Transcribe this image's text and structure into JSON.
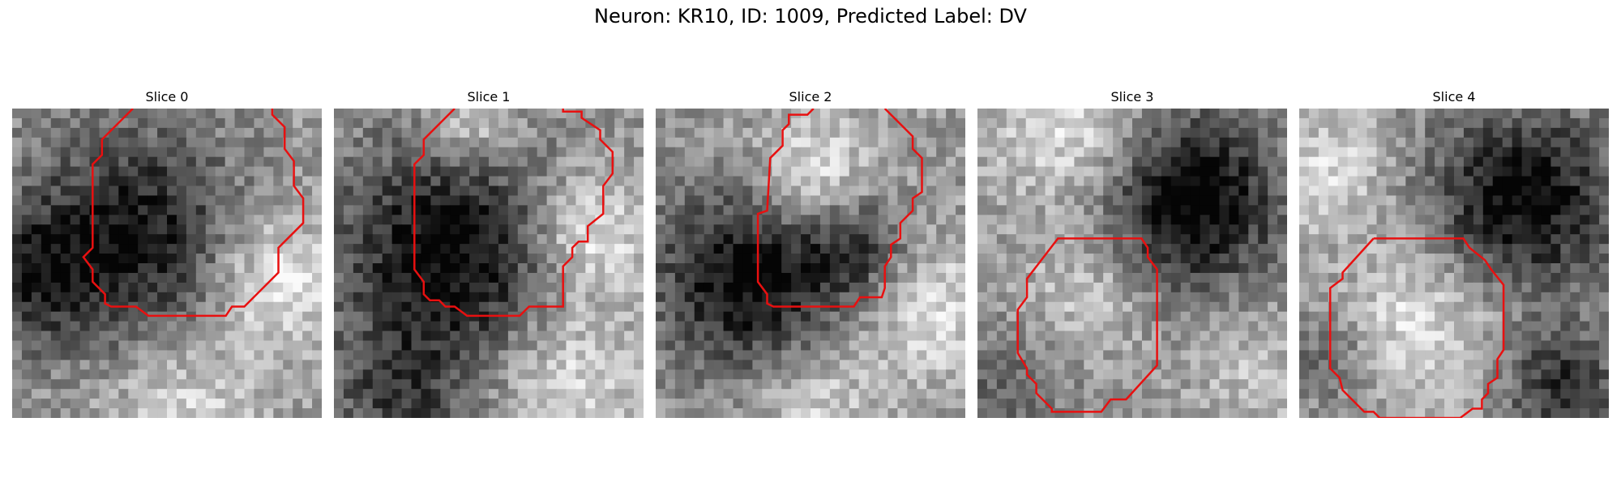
{
  "figure": {
    "title": "Neuron: KR10, ID: 1009, Predicted Label: DV"
  },
  "colors": {
    "contour": "#e81010",
    "background": "#ffffff"
  },
  "slices": [
    {
      "title": "Slice 0",
      "seed": 11,
      "blobs": [
        [
          0.38,
          0.42,
          0.35,
          -0.55
        ],
        [
          0.85,
          0.55,
          0.22,
          0.35
        ],
        [
          0.55,
          0.95,
          0.25,
          0.25
        ],
        [
          0.05,
          0.55,
          0.2,
          -0.35
        ]
      ],
      "contour": [
        [
          0.39,
          0.0
        ],
        [
          0.29,
          0.1
        ],
        [
          0.29,
          0.15
        ],
        [
          0.26,
          0.18
        ],
        [
          0.26,
          0.45
        ],
        [
          0.23,
          0.48
        ],
        [
          0.26,
          0.52
        ],
        [
          0.26,
          0.56
        ],
        [
          0.3,
          0.6
        ],
        [
          0.3,
          0.63
        ],
        [
          0.32,
          0.64
        ],
        [
          0.4,
          0.64
        ],
        [
          0.44,
          0.67
        ],
        [
          0.69,
          0.67
        ],
        [
          0.71,
          0.64
        ],
        [
          0.75,
          0.64
        ],
        [
          0.86,
          0.53
        ],
        [
          0.86,
          0.45
        ],
        [
          0.94,
          0.37
        ],
        [
          0.94,
          0.29
        ],
        [
          0.91,
          0.25
        ],
        [
          0.91,
          0.17
        ],
        [
          0.88,
          0.13
        ],
        [
          0.88,
          0.06
        ],
        [
          0.84,
          0.02
        ],
        [
          0.84,
          0.0
        ]
      ]
    },
    {
      "title": "Slice 1",
      "seed": 23,
      "blobs": [
        [
          0.38,
          0.48,
          0.38,
          -0.6
        ],
        [
          0.82,
          0.4,
          0.2,
          0.4
        ],
        [
          0.45,
          0.05,
          0.15,
          0.3
        ],
        [
          0.2,
          0.95,
          0.2,
          -0.3
        ],
        [
          0.75,
          0.85,
          0.25,
          0.3
        ]
      ],
      "contour": [
        [
          0.39,
          0.0
        ],
        [
          0.29,
          0.1
        ],
        [
          0.29,
          0.15
        ],
        [
          0.26,
          0.18
        ],
        [
          0.26,
          0.52
        ],
        [
          0.29,
          0.56
        ],
        [
          0.29,
          0.6
        ],
        [
          0.31,
          0.62
        ],
        [
          0.34,
          0.62
        ],
        [
          0.36,
          0.64
        ],
        [
          0.39,
          0.64
        ],
        [
          0.43,
          0.67
        ],
        [
          0.6,
          0.67
        ],
        [
          0.63,
          0.64
        ],
        [
          0.74,
          0.64
        ],
        [
          0.74,
          0.51
        ],
        [
          0.77,
          0.48
        ],
        [
          0.77,
          0.45
        ],
        [
          0.79,
          0.43
        ],
        [
          0.82,
          0.43
        ],
        [
          0.82,
          0.38
        ],
        [
          0.87,
          0.34
        ],
        [
          0.87,
          0.25
        ],
        [
          0.9,
          0.21
        ],
        [
          0.9,
          0.14
        ],
        [
          0.86,
          0.1
        ],
        [
          0.86,
          0.07
        ],
        [
          0.8,
          0.03
        ],
        [
          0.8,
          0.01
        ],
        [
          0.74,
          0.01
        ],
        [
          0.74,
          0.0
        ]
      ]
    },
    {
      "title": "Slice 2",
      "seed": 37,
      "blobs": [
        [
          0.3,
          0.55,
          0.3,
          -0.6
        ],
        [
          0.65,
          0.45,
          0.18,
          -0.35
        ],
        [
          0.5,
          0.22,
          0.2,
          0.35
        ],
        [
          0.88,
          0.65,
          0.22,
          0.3
        ],
        [
          0.5,
          0.95,
          0.2,
          0.25
        ]
      ],
      "contour": [
        [
          0.51,
          0.0
        ],
        [
          0.49,
          0.02
        ],
        [
          0.43,
          0.02
        ],
        [
          0.43,
          0.05
        ],
        [
          0.41,
          0.07
        ],
        [
          0.41,
          0.12
        ],
        [
          0.37,
          0.16
        ],
        [
          0.36,
          0.33
        ],
        [
          0.33,
          0.34
        ],
        [
          0.33,
          0.56
        ],
        [
          0.36,
          0.6
        ],
        [
          0.36,
          0.63
        ],
        [
          0.38,
          0.64
        ],
        [
          0.64,
          0.64
        ],
        [
          0.66,
          0.61
        ],
        [
          0.73,
          0.61
        ],
        [
          0.74,
          0.58
        ],
        [
          0.74,
          0.51
        ],
        [
          0.76,
          0.48
        ],
        [
          0.76,
          0.44
        ],
        [
          0.79,
          0.42
        ],
        [
          0.79,
          0.37
        ],
        [
          0.83,
          0.33
        ],
        [
          0.83,
          0.29
        ],
        [
          0.86,
          0.27
        ],
        [
          0.86,
          0.16
        ],
        [
          0.83,
          0.13
        ],
        [
          0.83,
          0.09
        ],
        [
          0.74,
          0.0
        ]
      ]
    },
    {
      "title": "Slice 3",
      "seed": 53,
      "blobs": [
        [
          0.7,
          0.3,
          0.28,
          -0.65
        ],
        [
          0.35,
          0.6,
          0.2,
          0.2
        ],
        [
          0.3,
          0.05,
          0.25,
          0.3
        ],
        [
          0.1,
          0.9,
          0.2,
          -0.2
        ],
        [
          0.9,
          0.85,
          0.2,
          0.15
        ]
      ],
      "contour": [
        [
          0.34,
          0.42
        ],
        [
          0.26,
          0.42
        ],
        [
          0.16,
          0.55
        ],
        [
          0.16,
          0.61
        ],
        [
          0.13,
          0.65
        ],
        [
          0.13,
          0.79
        ],
        [
          0.16,
          0.84
        ],
        [
          0.16,
          0.86
        ],
        [
          0.19,
          0.89
        ],
        [
          0.19,
          0.92
        ],
        [
          0.24,
          0.97
        ],
        [
          0.24,
          0.98
        ],
        [
          0.4,
          0.98
        ],
        [
          0.43,
          0.94
        ],
        [
          0.48,
          0.94
        ],
        [
          0.58,
          0.83
        ],
        [
          0.58,
          0.52
        ],
        [
          0.55,
          0.48
        ],
        [
          0.55,
          0.45
        ],
        [
          0.53,
          0.42
        ],
        [
          0.34,
          0.42
        ]
      ]
    },
    {
      "title": "Slice 4",
      "seed": 71,
      "blobs": [
        [
          0.72,
          0.3,
          0.3,
          -0.6
        ],
        [
          0.4,
          0.68,
          0.25,
          0.3
        ],
        [
          0.85,
          0.9,
          0.18,
          -0.45
        ],
        [
          0.1,
          0.2,
          0.2,
          0.25
        ],
        [
          0.1,
          0.8,
          0.15,
          -0.2
        ]
      ],
      "contour": [
        [
          0.24,
          0.42
        ],
        [
          0.14,
          0.53
        ],
        [
          0.14,
          0.55
        ],
        [
          0.1,
          0.58
        ],
        [
          0.1,
          0.84
        ],
        [
          0.13,
          0.87
        ],
        [
          0.14,
          0.91
        ],
        [
          0.21,
          0.98
        ],
        [
          0.24,
          0.98
        ],
        [
          0.26,
          1.0
        ],
        [
          0.52,
          1.0
        ],
        [
          0.56,
          0.97
        ],
        [
          0.59,
          0.97
        ],
        [
          0.59,
          0.94
        ],
        [
          0.61,
          0.92
        ],
        [
          0.61,
          0.89
        ],
        [
          0.64,
          0.87
        ],
        [
          0.64,
          0.81
        ],
        [
          0.66,
          0.78
        ],
        [
          0.66,
          0.57
        ],
        [
          0.62,
          0.52
        ],
        [
          0.6,
          0.49
        ],
        [
          0.55,
          0.45
        ],
        [
          0.53,
          0.42
        ],
        [
          0.5,
          0.42
        ],
        [
          0.24,
          0.42
        ]
      ]
    }
  ]
}
